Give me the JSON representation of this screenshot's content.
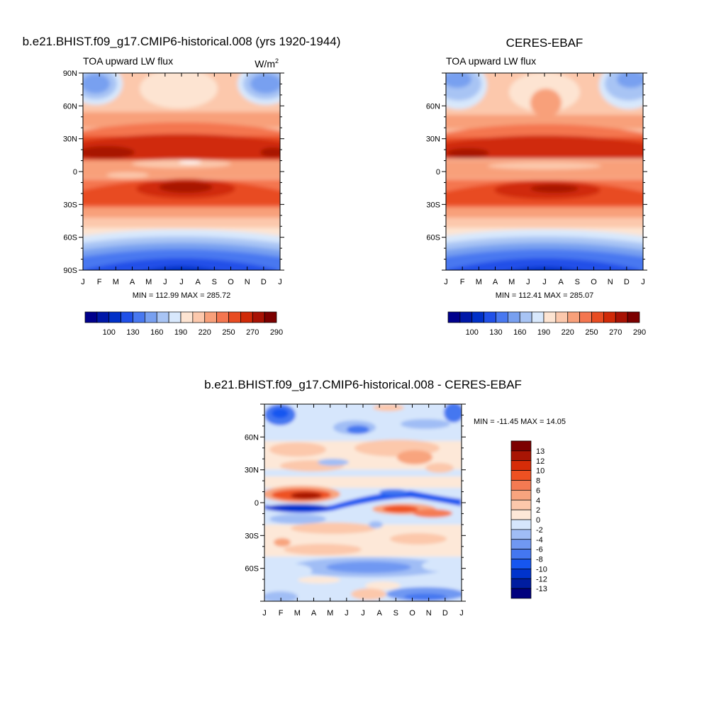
{
  "colors": {
    "main": [
      "#00008c",
      "#0018a8",
      "#0030c8",
      "#2050e8",
      "#4878f0",
      "#78a0f0",
      "#a8c4f4",
      "#d8e8fc",
      "#fde4d2",
      "#fcc8ac",
      "#f8a07a",
      "#f47650",
      "#e84c22",
      "#d02a08",
      "#a81204",
      "#7c0000"
    ],
    "diff": [
      "#00007e",
      "#001da0",
      "#0033cc",
      "#1656f0",
      "#4477f0",
      "#7098f2",
      "#a0bdf5",
      "#d6e6fc",
      "#fde8d8",
      "#fcc8ab",
      "#f8a47e",
      "#f47a52",
      "#ee5122",
      "#d62c08",
      "#a81504",
      "#7c0000"
    ]
  },
  "panel1": {
    "title": "b.e21.BHIST.f09_g17.CMIP6-historical.008 (yrs 1920-1944)",
    "left_label": "TOA upward LW flux",
    "units": "W/m",
    "units_sup": "2",
    "minmax": "MIN = 112.99 MAX = 285.72"
  },
  "panel2": {
    "title": "CERES-EBAF",
    "left_label": "TOA upward LW flux",
    "minmax": "MIN = 112.41 MAX = 285.07"
  },
  "panel3": {
    "title": "b.e21.BHIST.f09_g17.CMIP6-historical.008 - CERES-EBAF",
    "minmax": "MIN = -11.45 MAX =  14.05"
  },
  "colorbar_main_labels": [
    "100",
    "130",
    "160",
    "190",
    "220",
    "250",
    "270",
    "290"
  ],
  "colorbar_diff_labels": [
    "13",
    "12",
    "10",
    "8",
    "6",
    "4",
    "2",
    "0",
    "-2",
    "-4",
    "-6",
    "-8",
    "-10",
    "-12",
    "-13"
  ],
  "month_labels": [
    "J",
    "F",
    "M",
    "A",
    "M",
    "J",
    "J",
    "A",
    "S",
    "O",
    "N",
    "D",
    "J"
  ],
  "chart_data": [
    {
      "type": "heatmap",
      "title": "b.e21.BHIST.f09_g17.CMIP6-historical.008 (yrs 1920-1944)",
      "variable": "TOA upward LW flux",
      "units": "W/m2",
      "x": [
        "J",
        "F",
        "M",
        "A",
        "M",
        "J",
        "J",
        "A",
        "S",
        "O",
        "N",
        "D",
        "J"
      ],
      "y_ticks": [
        "90N",
        "60N",
        "30N",
        "0",
        "30S",
        "60S",
        "90S"
      ],
      "ylim": [
        -90,
        90
      ],
      "colorbar_levels": [
        100,
        130,
        160,
        190,
        220,
        250,
        270,
        290
      ],
      "min": 112.99,
      "max": 285.72
    },
    {
      "type": "heatmap",
      "title": "CERES-EBAF",
      "variable": "TOA upward LW flux",
      "x": [
        "J",
        "F",
        "M",
        "A",
        "M",
        "J",
        "J",
        "A",
        "S",
        "O",
        "N",
        "D",
        "J"
      ],
      "y_ticks": [
        "60N",
        "30N",
        "0",
        "30S",
        "60S"
      ],
      "ylim": [
        -90,
        90
      ],
      "colorbar_levels": [
        100,
        130,
        160,
        190,
        220,
        250,
        270,
        290
      ],
      "min": 112.41,
      "max": 285.07
    },
    {
      "type": "heatmap",
      "title": "b.e21.BHIST.f09_g17.CMIP6-historical.008 - CERES-EBAF",
      "x": [
        "J",
        "F",
        "M",
        "A",
        "M",
        "J",
        "J",
        "A",
        "S",
        "O",
        "N",
        "D",
        "J"
      ],
      "y_ticks": [
        "60N",
        "30N",
        "0",
        "30S",
        "60S"
      ],
      "ylim": [
        -90,
        90
      ],
      "colorbar_levels": [
        13,
        12,
        10,
        8,
        6,
        4,
        2,
        0,
        -2,
        -4,
        -6,
        -8,
        -10,
        -12,
        -13
      ],
      "min": -11.45,
      "max": 14.05
    }
  ]
}
